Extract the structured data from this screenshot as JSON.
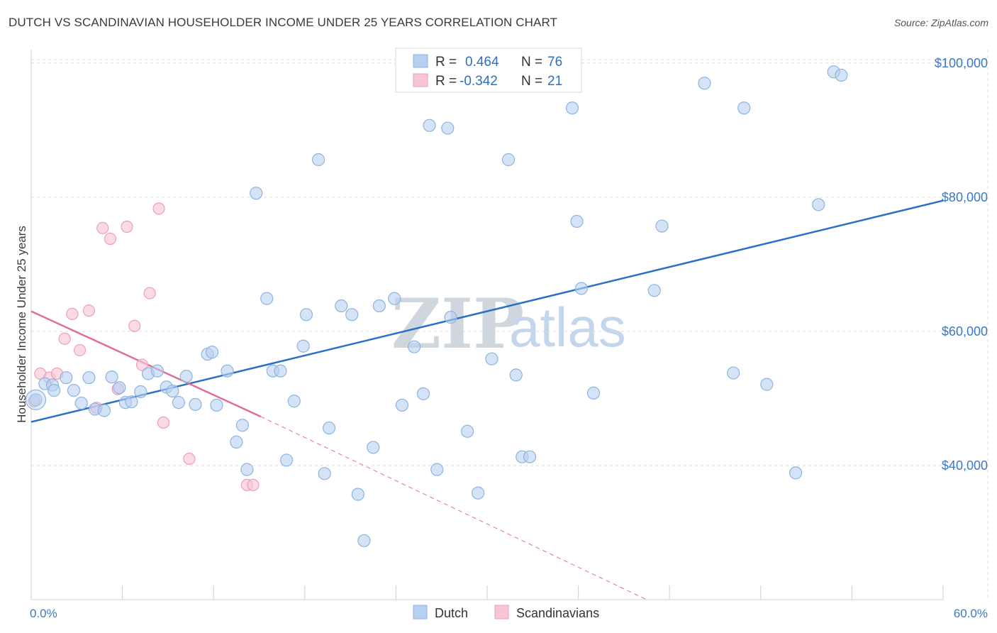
{
  "title": "DUTCH VS SCANDINAVIAN HOUSEHOLDER INCOME UNDER 25 YEARS CORRELATION CHART",
  "source": "Source: ZipAtlas.com",
  "watermark": {
    "zip": "ZIP",
    "atlas": "atlas"
  },
  "colors": {
    "dutch_fill": "#b8d0f0",
    "dutch_stroke": "#8fb3e0",
    "dutch_line": "#2c6fc8",
    "scand_fill": "#f7c6d4",
    "scand_stroke": "#ee9fb8",
    "scand_line": "#e06e97",
    "grid": "#dcdcdc",
    "axis_label": "#3b78c4"
  },
  "legend": {
    "rows": [
      {
        "r_label": "R =",
        "r_value": "0.464",
        "n_label": "N =",
        "n_value": "76"
      },
      {
        "r_label": "R =",
        "r_value": "-0.342",
        "n_label": "N =",
        "n_value": "21"
      }
    ]
  },
  "bottom_legend": [
    "Dutch",
    "Scandinavians"
  ],
  "chart_data": {
    "type": "scatter",
    "title": "DUTCH VS SCANDINAVIAN HOUSEHOLDER INCOME UNDER 25 YEARS CORRELATION CHART",
    "xlabel": "",
    "ylabel": "Householder Income Under 25 years",
    "x_tick_labels": [
      "0.0%",
      "60.0%"
    ],
    "y_tick_labels": [
      "$40,000",
      "$60,000",
      "$80,000",
      "$100,000"
    ],
    "y_ticks": [
      40000,
      60000,
      80000,
      100000
    ],
    "xlim": [
      0,
      60
    ],
    "ylim": [
      20000,
      102000
    ],
    "grid": true,
    "legend_position": "top-center",
    "series": [
      {
        "name": "Dutch",
        "trend": {
          "x": [
            0,
            60
          ],
          "y": [
            46500,
            79500
          ]
        },
        "points": [
          [
            0.3,
            49.8
          ],
          [
            0.9,
            52.2
          ],
          [
            1.4,
            52.0
          ],
          [
            1.5,
            51.2
          ],
          [
            2.3,
            53.1
          ],
          [
            2.8,
            51.2
          ],
          [
            3.3,
            49.3
          ],
          [
            3.8,
            53.1
          ],
          [
            4.2,
            48.4
          ],
          [
            4.8,
            48.2
          ],
          [
            5.3,
            53.2
          ],
          [
            5.8,
            51.6
          ],
          [
            6.2,
            49.4
          ],
          [
            6.6,
            49.5
          ],
          [
            7.2,
            51.0
          ],
          [
            7.7,
            53.7
          ],
          [
            8.3,
            54.1
          ],
          [
            8.9,
            51.7
          ],
          [
            9.3,
            51.1
          ],
          [
            9.7,
            49.4
          ],
          [
            10.2,
            53.3
          ],
          [
            10.8,
            49.1
          ],
          [
            11.6,
            56.6
          ],
          [
            11.9,
            56.9
          ],
          [
            12.2,
            49.0
          ],
          [
            12.9,
            54.1
          ],
          [
            13.5,
            43.5
          ],
          [
            13.9,
            46.0
          ],
          [
            14.2,
            39.4
          ],
          [
            14.8,
            80.6
          ],
          [
            15.5,
            64.9
          ],
          [
            15.9,
            54.1
          ],
          [
            16.4,
            54.1
          ],
          [
            16.8,
            40.8
          ],
          [
            17.3,
            49.6
          ],
          [
            17.9,
            57.8
          ],
          [
            18.1,
            62.5
          ],
          [
            18.9,
            85.6
          ],
          [
            19.3,
            38.8
          ],
          [
            19.6,
            45.6
          ],
          [
            20.4,
            63.8
          ],
          [
            21.1,
            62.5
          ],
          [
            21.5,
            35.7
          ],
          [
            21.9,
            28.8
          ],
          [
            22.5,
            42.7
          ],
          [
            22.9,
            63.8
          ],
          [
            23.9,
            64.9
          ],
          [
            24.4,
            49.0
          ],
          [
            25.2,
            57.7
          ],
          [
            25.8,
            50.7
          ],
          [
            26.2,
            90.7
          ],
          [
            26.7,
            39.4
          ],
          [
            27.4,
            90.3
          ],
          [
            27.6,
            62.1
          ],
          [
            28.2,
            99.8
          ],
          [
            28.7,
            45.1
          ],
          [
            29.4,
            35.9
          ],
          [
            30.3,
            55.9
          ],
          [
            31.4,
            85.6
          ],
          [
            31.9,
            53.5
          ],
          [
            32.3,
            41.3
          ],
          [
            32.8,
            41.3
          ],
          [
            35.6,
            93.3
          ],
          [
            35.9,
            76.4
          ],
          [
            36.2,
            66.4
          ],
          [
            37.0,
            50.8
          ],
          [
            41.0,
            66.1
          ],
          [
            41.5,
            75.7
          ],
          [
            44.3,
            97.0
          ],
          [
            46.2,
            53.8
          ],
          [
            46.9,
            93.3
          ],
          [
            48.4,
            52.1
          ],
          [
            50.3,
            38.9
          ],
          [
            51.8,
            78.9
          ],
          [
            52.8,
            98.7
          ],
          [
            53.3,
            98.2
          ]
        ]
      },
      {
        "name": "Scandinavians",
        "trend": {
          "x": [
            0,
            15.1
          ],
          "y": [
            63000,
            47300
          ]
        },
        "trend_extension": {
          "x": [
            15.1,
            40.5
          ],
          "y": [
            47300,
            20000
          ]
        },
        "points": [
          [
            0.2,
            49.6
          ],
          [
            0.6,
            53.7
          ],
          [
            1.2,
            53.1
          ],
          [
            1.7,
            53.7
          ],
          [
            2.2,
            58.9
          ],
          [
            2.7,
            62.6
          ],
          [
            3.2,
            57.2
          ],
          [
            3.8,
            63.1
          ],
          [
            4.3,
            48.6
          ],
          [
            4.7,
            75.4
          ],
          [
            5.2,
            73.8
          ],
          [
            5.7,
            51.4
          ],
          [
            6.3,
            75.6
          ],
          [
            6.8,
            60.8
          ],
          [
            7.3,
            55.0
          ],
          [
            7.8,
            65.7
          ],
          [
            8.4,
            78.3
          ],
          [
            8.7,
            46.4
          ],
          [
            10.4,
            41.0
          ],
          [
            14.2,
            37.1
          ],
          [
            14.6,
            37.1
          ]
        ]
      }
    ]
  }
}
